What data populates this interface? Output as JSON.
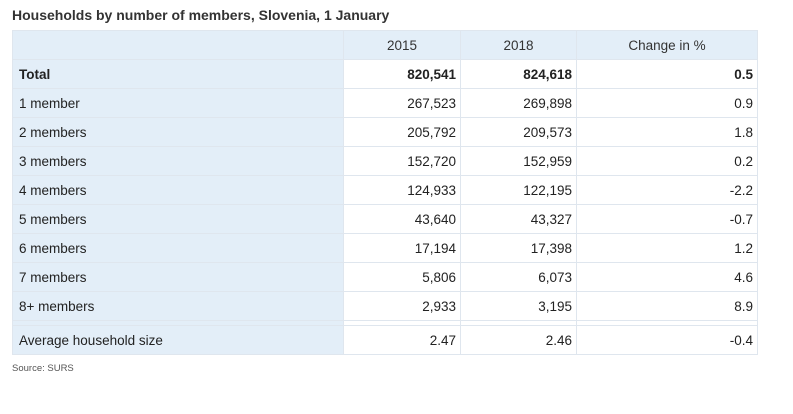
{
  "title": "Households by number of members, Slovenia, 1 January",
  "columns": [
    "",
    "2015",
    "2018",
    "Change in %"
  ],
  "rows": [
    {
      "label": "Total",
      "v2015": "820,541",
      "v2018": "824,618",
      "change": "0.5"
    },
    {
      "label": "1 member",
      "v2015": "267,523",
      "v2018": "269,898",
      "change": "0.9"
    },
    {
      "label": "2 members",
      "v2015": "205,792",
      "v2018": "209,573",
      "change": "1.8"
    },
    {
      "label": "3 members",
      "v2015": "152,720",
      "v2018": "152,959",
      "change": "0.2"
    },
    {
      "label": "4 members",
      "v2015": "124,933",
      "v2018": "122,195",
      "change": "-2.2"
    },
    {
      "label": "5 members",
      "v2015": "43,640",
      "v2018": "43,327",
      "change": "-0.7"
    },
    {
      "label": "6 members",
      "v2015": "17,194",
      "v2018": "17,398",
      "change": "1.2"
    },
    {
      "label": "7 members",
      "v2015": "5,806",
      "v2018": "6,073",
      "change": "4.6"
    },
    {
      "label": "8+ members",
      "v2015": "2,933",
      "v2018": "3,195",
      "change": "8.9"
    },
    {
      "label": "Average household size",
      "v2015": "2.47",
      "v2018": "2.46",
      "change": "-0.4"
    }
  ],
  "source": "Source: SURS",
  "colors": {
    "header_bg": "#e3eef8",
    "border": "#dfe6ee"
  }
}
